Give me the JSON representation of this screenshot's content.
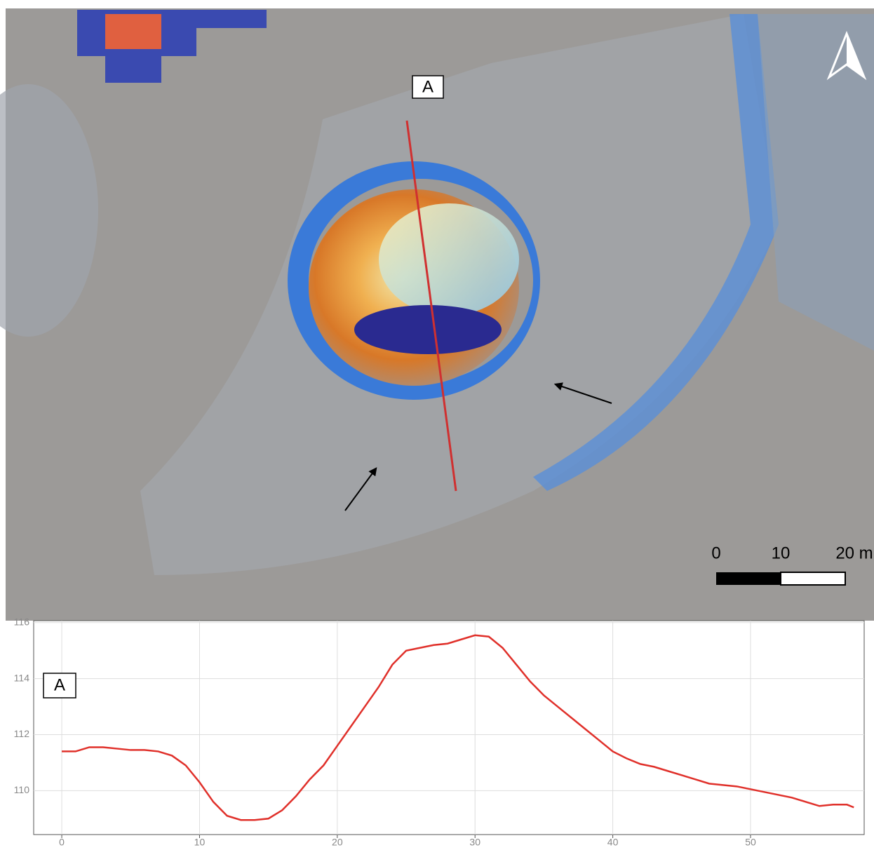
{
  "map": {
    "profile_label": "A",
    "scale_labels": [
      "0",
      "10",
      "20 m"
    ]
  },
  "chart_data": {
    "type": "line",
    "annotation": "A",
    "color": "#e0302a",
    "x": [
      0,
      1,
      2,
      3,
      4,
      5,
      6,
      7,
      8,
      9,
      10,
      11,
      12,
      13,
      14,
      15,
      16,
      17,
      18,
      19,
      20,
      21,
      22,
      23,
      24,
      25,
      26,
      27,
      28,
      29,
      30,
      31,
      32,
      33,
      34,
      35,
      36,
      37,
      38,
      39,
      40,
      41,
      42,
      43,
      44,
      45,
      46,
      47,
      48,
      49,
      50,
      51,
      52,
      53,
      54,
      55,
      56,
      57,
      57.5
    ],
    "values": [
      111.4,
      111.4,
      111.55,
      111.55,
      111.5,
      111.45,
      111.45,
      111.4,
      111.25,
      110.9,
      110.3,
      109.6,
      109.1,
      108.95,
      108.95,
      109.0,
      109.3,
      109.8,
      110.4,
      110.9,
      111.6,
      112.3,
      113.0,
      113.7,
      114.5,
      115.0,
      115.1,
      115.2,
      115.25,
      115.4,
      115.55,
      115.5,
      115.1,
      114.5,
      113.9,
      113.4,
      113.0,
      112.6,
      112.2,
      111.8,
      111.4,
      111.15,
      110.95,
      110.85,
      110.7,
      110.55,
      110.4,
      110.25,
      110.2,
      110.15,
      110.05,
      109.95,
      109.85,
      109.75,
      109.6,
      109.45,
      109.5,
      109.5,
      109.4
    ],
    "xlim": [
      -2.04,
      58.25
    ],
    "xticks": [
      0,
      10,
      20,
      30,
      40,
      50
    ],
    "ylim": [
      108.43,
      116.07
    ],
    "yticks": [
      110,
      112,
      114,
      116
    ],
    "grid": true
  }
}
